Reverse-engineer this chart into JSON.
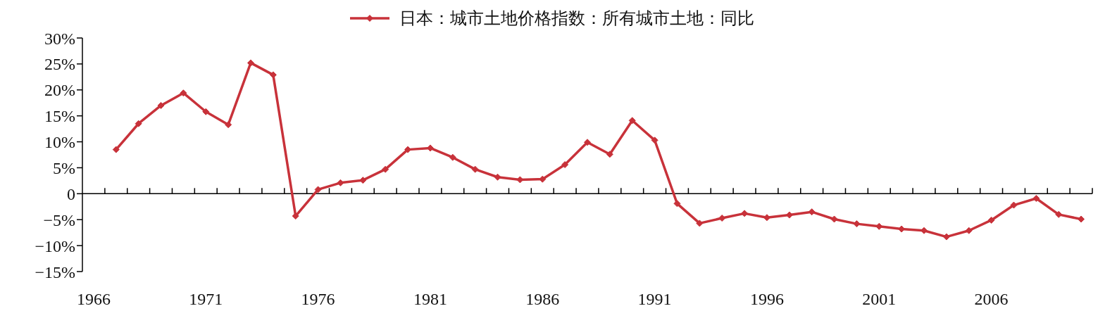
{
  "chart_data": {
    "type": "line",
    "categories": [
      "1966",
      null,
      null,
      null,
      null,
      "1971",
      null,
      null,
      null,
      null,
      "1976",
      null,
      null,
      null,
      null,
      "1981",
      null,
      null,
      null,
      null,
      "1986",
      null,
      null,
      null,
      null,
      "1991",
      null,
      null,
      null,
      null,
      "1996",
      null,
      null,
      null,
      null,
      "2001",
      null,
      null,
      null,
      null,
      "2006",
      null,
      null,
      null,
      null
    ],
    "series": [
      {
        "name": "日本：城市土地价格指数：所有城市土地：同比",
        "color": "#c8323a",
        "values": [
          null,
          8.5,
          13.5,
          17.0,
          19.4,
          15.8,
          13.3,
          25.2,
          22.9,
          -4.3,
          0.8,
          2.1,
          2.6,
          4.7,
          8.5,
          8.8,
          7.0,
          4.7,
          3.2,
          2.7,
          2.8,
          5.6,
          9.9,
          7.6,
          14.1,
          10.3,
          -1.9,
          -5.7,
          -4.7,
          -3.8,
          -4.6,
          -4.1,
          -3.5,
          -4.9,
          -5.8,
          -6.3,
          -6.8,
          -7.1,
          -8.3,
          -7.1,
          -5.1,
          -2.2,
          -0.9,
          -4.0,
          -4.9
        ]
      }
    ],
    "ylim": [
      -15,
      30
    ],
    "yticks": [
      {
        "value": 30,
        "label": "30%"
      },
      {
        "value": 25,
        "label": "25%"
      },
      {
        "value": 20,
        "label": "20%"
      },
      {
        "value": 15,
        "label": "15%"
      },
      {
        "value": 10,
        "label": "10%"
      },
      {
        "value": 5,
        "label": "5%"
      },
      0,
      {
        "value": -5,
        "label": "−5%"
      },
      {
        "value": -10,
        "label": "−10%"
      },
      {
        "value": -15,
        "label": "−15%"
      }
    ],
    "legend": "top",
    "marker": "diamond",
    "line_style": "solid"
  }
}
